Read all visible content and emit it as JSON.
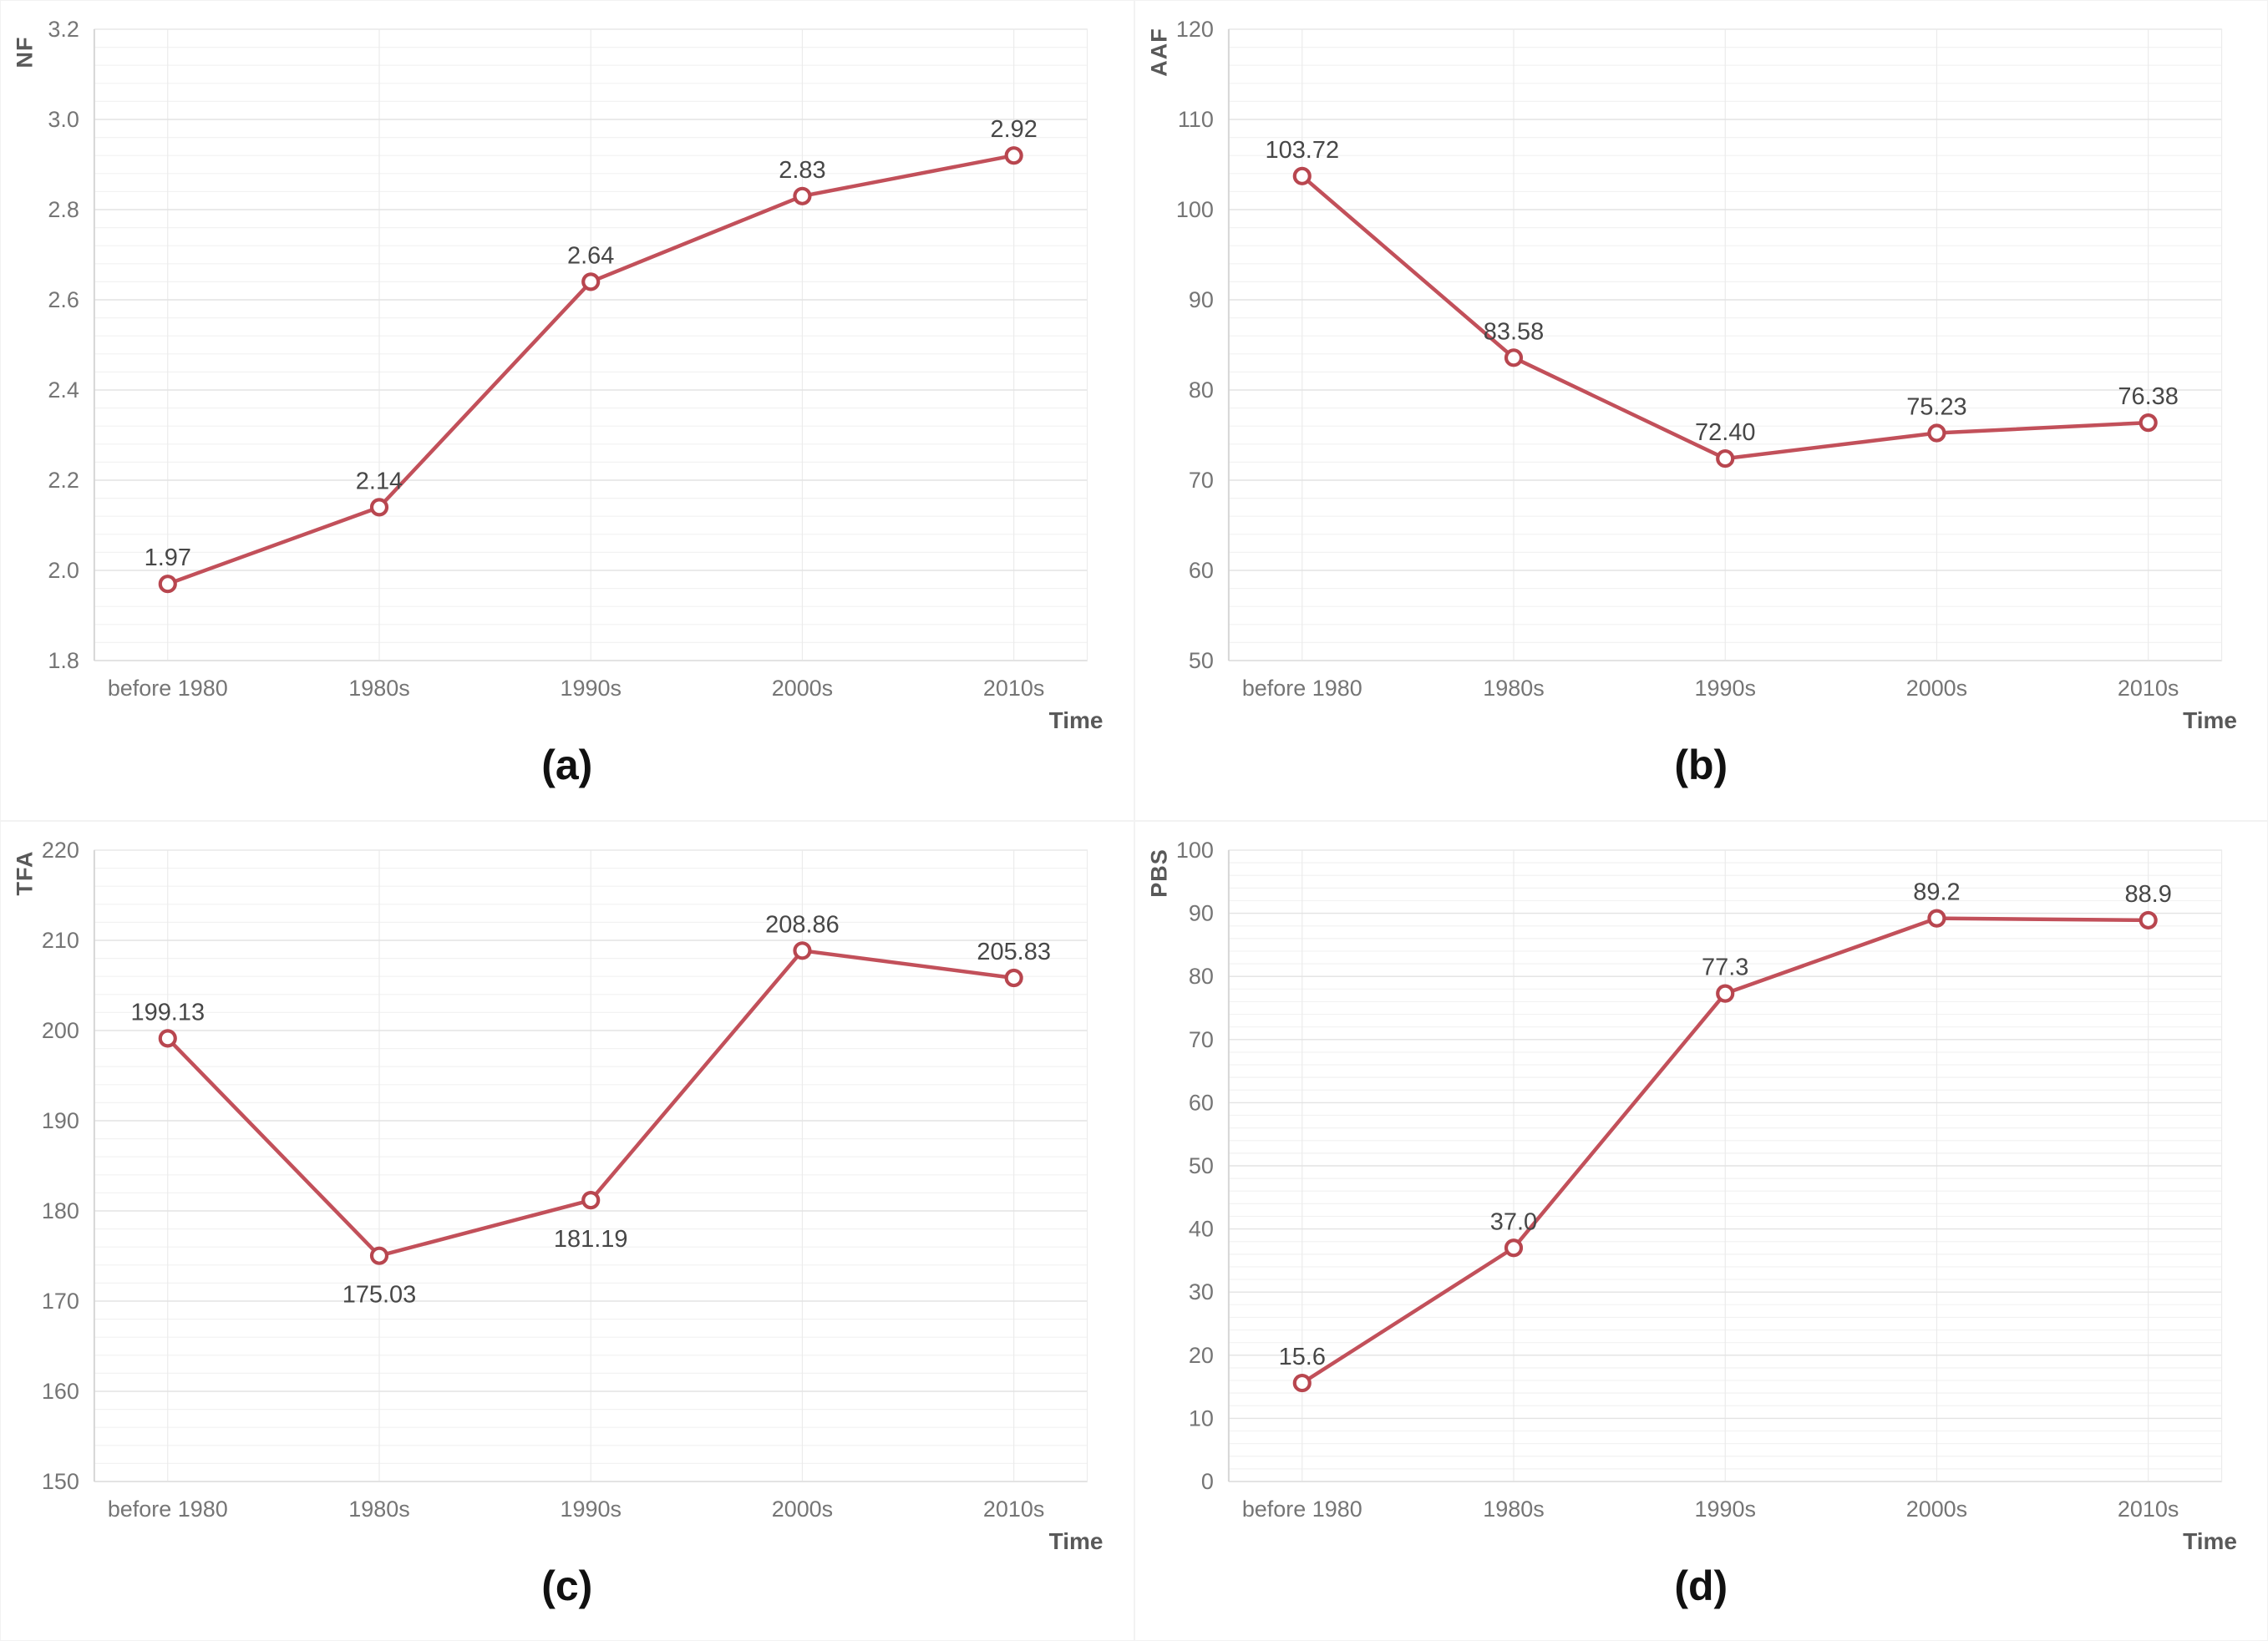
{
  "colors": {
    "line": "#c2505a",
    "marker_stroke": "#b8464f",
    "marker_fill": "#ffffff",
    "data_label": "#474747",
    "tick": "#757575",
    "axis_title": "#595959",
    "caption": "#111111",
    "grid_major": "#e3e3e3",
    "grid_minor": "#f2f2f2",
    "grid_vert": "#ebebeb",
    "axis_line": "#d6d6d6",
    "plot_border": "#ececec"
  },
  "chart_data": [
    {
      "type": "line",
      "panel_label": "(a)",
      "ylabel": "NF",
      "xlabel": "Time",
      "legend": "none",
      "grid": true,
      "categories": [
        "before 1980",
        "1980s",
        "1990s",
        "2000s",
        "2010s"
      ],
      "values": [
        1.97,
        2.14,
        2.64,
        2.83,
        2.92
      ],
      "data_labels": [
        "1.97",
        "2.14",
        "2.64",
        "2.83",
        "2.92"
      ],
      "label_positions": [
        "above",
        "above",
        "above",
        "above",
        "above"
      ],
      "ylim": [
        1.8,
        3.2
      ],
      "ytick_labels": [
        "1.8",
        "2.0",
        "2.2",
        "2.4",
        "2.6",
        "2.8",
        "3.0",
        "3.2"
      ],
      "minor_per_major": 4
    },
    {
      "type": "line",
      "panel_label": "(b)",
      "ylabel": "AAF",
      "xlabel": "Time",
      "legend": "none",
      "grid": true,
      "categories": [
        "before 1980",
        "1980s",
        "1990s",
        "2000s",
        "2010s"
      ],
      "values": [
        103.72,
        83.58,
        72.4,
        75.23,
        76.38
      ],
      "data_labels": [
        "103.72",
        "83.58",
        "72.40",
        "75.23",
        "76.38"
      ],
      "label_positions": [
        "above",
        "above",
        "above",
        "above",
        "above"
      ],
      "ylim": [
        50,
        120
      ],
      "ytick_labels": [
        "50",
        "60",
        "70",
        "80",
        "90",
        "100",
        "110",
        "120"
      ],
      "minor_per_major": 4
    },
    {
      "type": "line",
      "panel_label": "(c)",
      "ylabel": "TFA",
      "xlabel": "Time",
      "legend": "none",
      "grid": true,
      "categories": [
        "before 1980",
        "1980s",
        "1990s",
        "2000s",
        "2010s"
      ],
      "values": [
        199.13,
        175.03,
        181.19,
        208.86,
        205.83
      ],
      "data_labels": [
        "199.13",
        "175.03",
        "181.19",
        "208.86",
        "205.83"
      ],
      "label_positions": [
        "above",
        "below",
        "below",
        "above",
        "above"
      ],
      "ylim": [
        150,
        220
      ],
      "ytick_labels": [
        "150",
        "160",
        "170",
        "180",
        "190",
        "200",
        "210",
        "220"
      ],
      "minor_per_major": 4
    },
    {
      "type": "line",
      "panel_label": "(d)",
      "ylabel": "PBS",
      "xlabel": "Time",
      "legend": "none",
      "grid": true,
      "categories": [
        "before 1980",
        "1980s",
        "1990s",
        "2000s",
        "2010s"
      ],
      "values": [
        15.6,
        37.0,
        77.3,
        89.2,
        88.9
      ],
      "data_labels": [
        "15.6",
        "37.0",
        "77.3",
        "89.2",
        "88.9"
      ],
      "label_positions": [
        "above",
        "above",
        "above",
        "above",
        "above"
      ],
      "ylim": [
        0,
        100
      ],
      "ytick_labels": [
        "0",
        "10",
        "20",
        "30",
        "40",
        "50",
        "60",
        "70",
        "80",
        "90",
        "100"
      ],
      "minor_per_major": 4
    }
  ]
}
